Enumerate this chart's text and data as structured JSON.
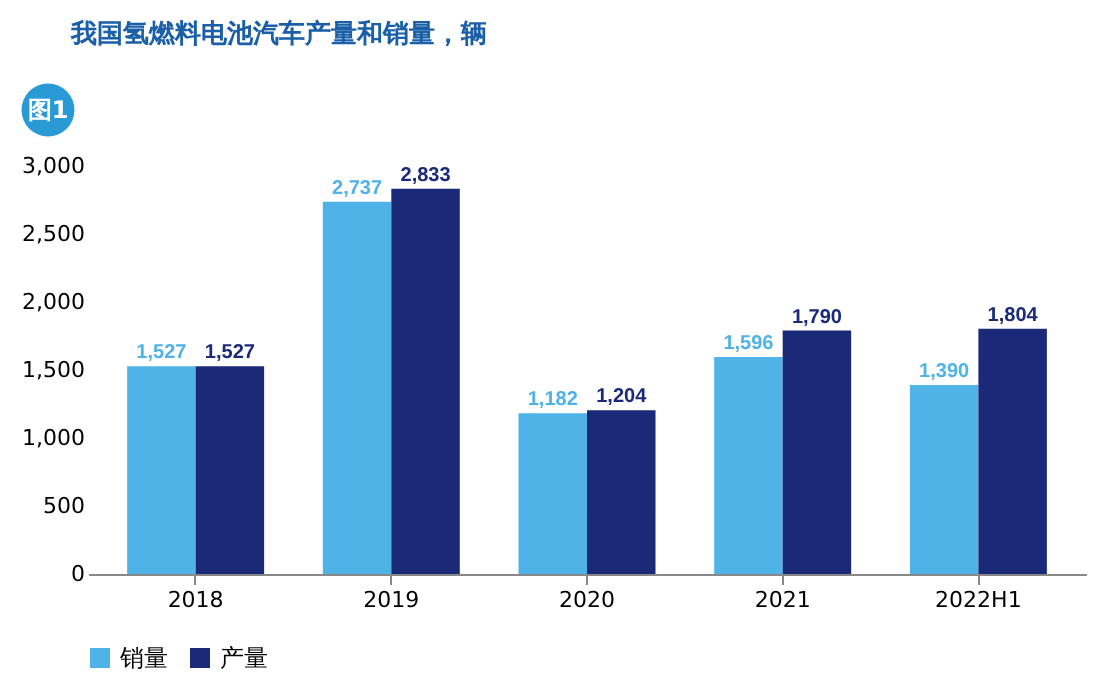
{
  "chart_data": {
    "type": "bar",
    "title": "我国氢燃料电池汽车产量和销量，辆",
    "annotations": [
      "图1"
    ],
    "categories": [
      "2018",
      "2019",
      "2020",
      "2021",
      "2022H1"
    ],
    "series": [
      {
        "name": "销量",
        "color": "#4fb3e8",
        "values": [
          1527,
          2737,
          1182,
          1596,
          1390
        ],
        "value_labels": [
          "1,527",
          "2,737",
          "1,182",
          "1,596",
          "1,390"
        ]
      },
      {
        "name": "产量",
        "color": "#1b2a78",
        "values": [
          1527,
          2833,
          1204,
          1790,
          1804
        ],
        "value_labels": [
          "1,527",
          "2,833",
          "1,204",
          "1,790",
          "1,804"
        ]
      }
    ],
    "ylim": [
      0,
      3000
    ],
    "yticks": [
      0,
      {
        "value": 500,
        "label": "500"
      },
      {
        "value": 1000,
        "label": "1,000"
      },
      {
        "value": 1500,
        "label": "1,500"
      },
      {
        "value": 2000,
        "label": "2,000"
      },
      {
        "value": 2500,
        "label": "2,500"
      },
      {
        "value": 3000,
        "label": "3,000"
      }
    ],
    "grid": false,
    "legend": "bottom",
    "data_labels": true
  }
}
